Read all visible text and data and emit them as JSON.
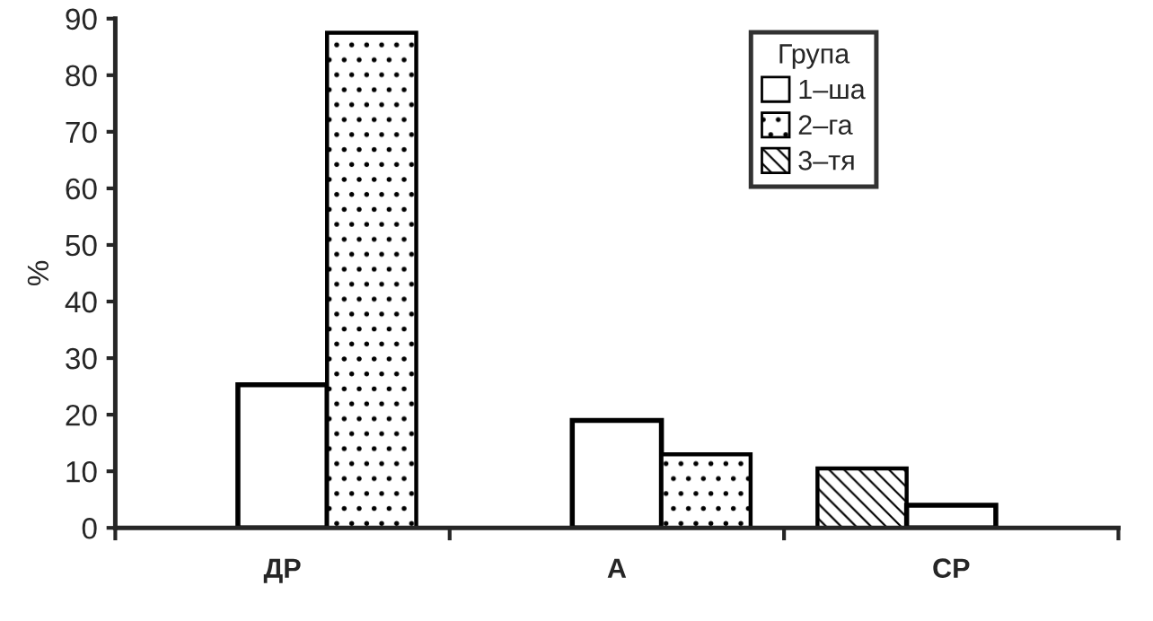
{
  "chart_data": {
    "type": "bar",
    "ylabel": "%",
    "legend_title": "Група",
    "legend": "top right",
    "categories": [
      "ДР",
      "А",
      "СР"
    ],
    "series": [
      {
        "name": "3–тя",
        "color": "#000000",
        "values": [
          0,
          0,
          10.5
        ]
      },
      {
        "name": "1–ша",
        "color": "#ffffff",
        "values": [
          25.3,
          19,
          4
        ]
      },
      {
        "name": "2–га",
        "color": "#000000",
        "values": [
          87.5,
          13,
          0
        ]
      }
    ],
    "ylim": [
      0,
      90
    ],
    "yticks": [
      0,
      10,
      20,
      30,
      40,
      50,
      60,
      70,
      80,
      90
    ],
    "grid": false
  }
}
